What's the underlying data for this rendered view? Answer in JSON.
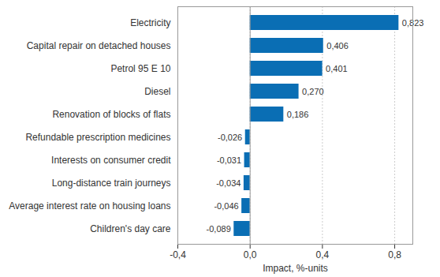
{
  "chart_data": {
    "type": "bar",
    "orientation": "horizontal",
    "categories": [
      "Electricity",
      "Capital repair on detached houses",
      "Petrol 95 E 10",
      "Diesel",
      "Renovation of blocks of flats",
      "Refundable prescription medicines",
      "Interests on consumer credit",
      "Long-distance train journeys",
      "Average interest rate on housing loans",
      "Children's day care"
    ],
    "values": [
      0.823,
      0.406,
      0.401,
      0.27,
      0.186,
      -0.026,
      -0.031,
      -0.034,
      -0.046,
      -0.089
    ],
    "value_labels": [
      "0,823",
      "0,406",
      "0,401",
      "0,270",
      "0,186",
      "-0,026",
      "-0,031",
      "-0,034",
      "-0,046",
      "-0,089"
    ],
    "data_labels": true,
    "color": "#0a6eb4",
    "x_label": "Impact, %-units",
    "xlim": [
      -0.4,
      0.9
    ],
    "xticks": [
      {
        "value": -0.4,
        "label": "-0,4"
      },
      {
        "value": 0,
        "label": "0,0"
      },
      {
        "value": 0.4,
        "label": "0,4"
      },
      {
        "value": 0.8,
        "label": "0,8"
      }
    ],
    "grid": true
  }
}
